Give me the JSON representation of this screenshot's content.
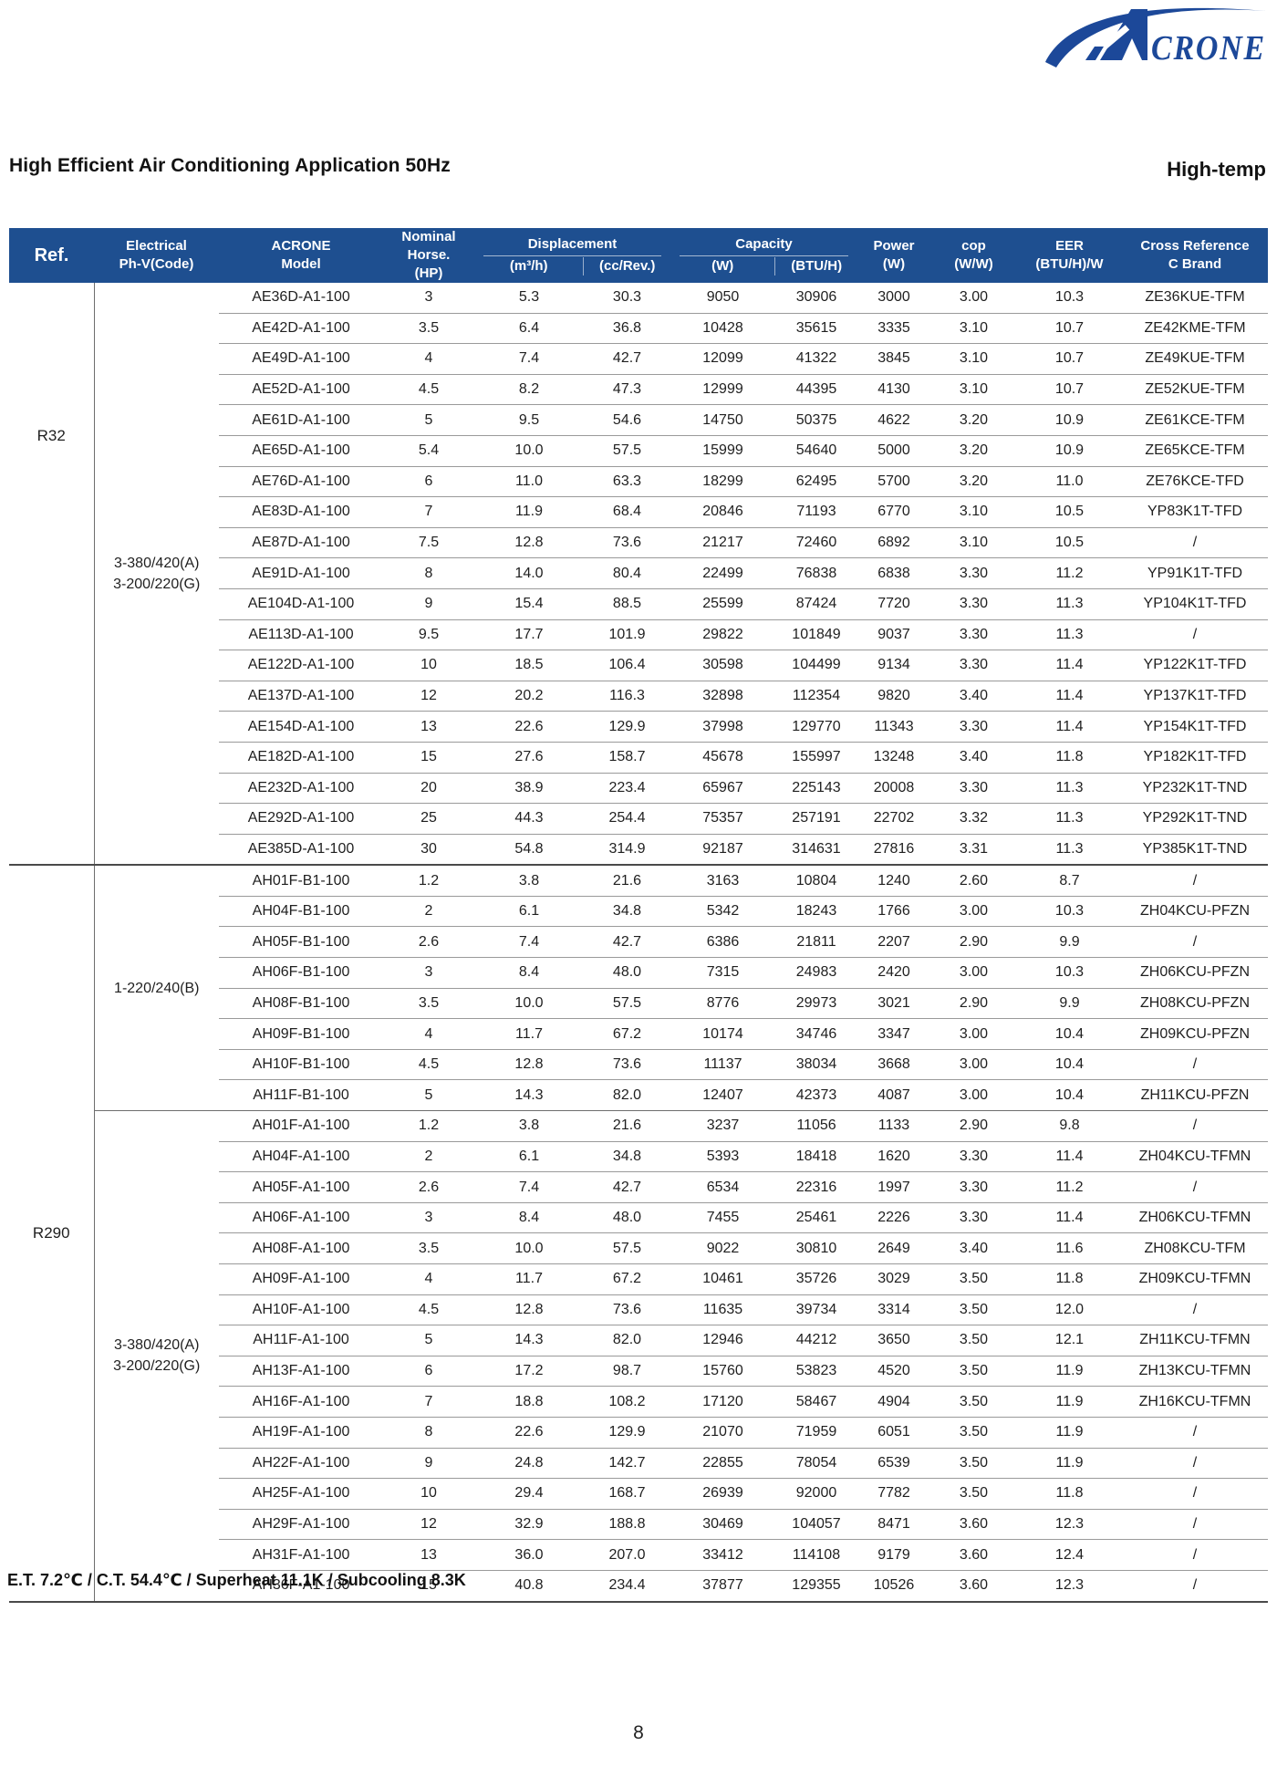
{
  "theme": {
    "header_bg": "#1e4f90",
    "brand_blue": "#1c4899",
    "rule_light": "#9a9a9a",
    "rule_mid": "#6e6e6e",
    "rule_dark": "#4a4a4a"
  },
  "page": {
    "title": "High Efficient Air Conditioning Application 50Hz",
    "corner_label": "High-temp",
    "footnote": "E.T. 7.2℃ / C.T. 54.4℃ / Superheat 11.1K / Subcooling 8.3K",
    "page_number": "8"
  },
  "logo": {
    "brand_rest": "CRONE"
  },
  "table": {
    "header": {
      "ref": "Ref.",
      "electrical_l1": "Electrical",
      "electrical_l2": "Ph-V(Code)",
      "model_l1": "ACRONE",
      "model_l2": "Model",
      "hp_l1": "Nominal Horse.",
      "hp_l2": "(HP)",
      "displacement": "Displacement",
      "disp_m3h": "(m³/h)",
      "disp_cc": "(cc/Rev.)",
      "capacity": "Capacity",
      "cap_w": "(W)",
      "cap_btu": "(BTU/H)",
      "power_l1": "Power",
      "power_l2": "(W)",
      "cop_l1": "cop",
      "cop_l2": "(W/W)",
      "eer_l1": "EER",
      "eer_l2": "(BTU/H)/W",
      "cross_l1": "Cross Reference",
      "cross_l2": "C Brand"
    },
    "sections": [
      {
        "ref": "R32",
        "ref_label_high": true,
        "groups": [
          {
            "electrical": [
              "3-380/420(A)",
              "3-200/220(G)"
            ],
            "rows": [
              [
                "AE36D-A1-100",
                "3",
                "5.3",
                "30.3",
                "9050",
                "30906",
                "3000",
                "3.00",
                "10.3",
                "ZE36KUE-TFM"
              ],
              [
                "AE42D-A1-100",
                "3.5",
                "6.4",
                "36.8",
                "10428",
                "35615",
                "3335",
                "3.10",
                "10.7",
                "ZE42KME-TFM"
              ],
              [
                "AE49D-A1-100",
                "4",
                "7.4",
                "42.7",
                "12099",
                "41322",
                "3845",
                "3.10",
                "10.7",
                "ZE49KUE-TFM"
              ],
              [
                "AE52D-A1-100",
                "4.5",
                "8.2",
                "47.3",
                "12999",
                "44395",
                "4130",
                "3.10",
                "10.7",
                "ZE52KUE-TFM"
              ],
              [
                "AE61D-A1-100",
                "5",
                "9.5",
                "54.6",
                "14750",
                "50375",
                "4622",
                "3.20",
                "10.9",
                "ZE61KCE-TFM"
              ],
              [
                "AE65D-A1-100",
                "5.4",
                "10.0",
                "57.5",
                "15999",
                "54640",
                "5000",
                "3.20",
                "10.9",
                "ZE65KCE-TFM"
              ],
              [
                "AE76D-A1-100",
                "6",
                "11.0",
                "63.3",
                "18299",
                "62495",
                "5700",
                "3.20",
                "11.0",
                "ZE76KCE-TFD"
              ],
              [
                "AE83D-A1-100",
                "7",
                "11.9",
                "68.4",
                "20846",
                "71193",
                "6770",
                "3.10",
                "10.5",
                "YP83K1T-TFD"
              ],
              [
                "AE87D-A1-100",
                "7.5",
                "12.8",
                "73.6",
                "21217",
                "72460",
                "6892",
                "3.10",
                "10.5",
                "/"
              ],
              [
                "AE91D-A1-100",
                "8",
                "14.0",
                "80.4",
                "22499",
                "76838",
                "6838",
                "3.30",
                "11.2",
                "YP91K1T-TFD"
              ],
              [
                "AE104D-A1-100",
                "9",
                "15.4",
                "88.5",
                "25599",
                "87424",
                "7720",
                "3.30",
                "11.3",
                "YP104K1T-TFD"
              ],
              [
                "AE113D-A1-100",
                "9.5",
                "17.7",
                "101.9",
                "29822",
                "101849",
                "9037",
                "3.30",
                "11.3",
                "/"
              ],
              [
                "AE122D-A1-100",
                "10",
                "18.5",
                "106.4",
                "30598",
                "104499",
                "9134",
                "3.30",
                "11.4",
                "YP122K1T-TFD"
              ],
              [
                "AE137D-A1-100",
                "12",
                "20.2",
                "116.3",
                "32898",
                "112354",
                "9820",
                "3.40",
                "11.4",
                "YP137K1T-TFD"
              ],
              [
                "AE154D-A1-100",
                "13",
                "22.6",
                "129.9",
                "37998",
                "129770",
                "11343",
                "3.30",
                "11.4",
                "YP154K1T-TFD"
              ],
              [
                "AE182D-A1-100",
                "15",
                "27.6",
                "158.7",
                "45678",
                "155997",
                "13248",
                "3.40",
                "11.8",
                "YP182K1T-TFD"
              ],
              [
                "AE232D-A1-100",
                "20",
                "38.9",
                "223.4",
                "65967",
                "225143",
                "20008",
                "3.30",
                "11.3",
                "YP232K1T-TND"
              ],
              [
                "AE292D-A1-100",
                "25",
                "44.3",
                "254.4",
                "75357",
                "257191",
                "22702",
                "3.32",
                "11.3",
                "YP292K1T-TND"
              ],
              [
                "AE385D-A1-100",
                "30",
                "54.8",
                "314.9",
                "92187",
                "314631",
                "27816",
                "3.31",
                "11.3",
                "YP385K1T-TND"
              ]
            ]
          }
        ]
      },
      {
        "ref": "R290",
        "ref_label_high": false,
        "groups": [
          {
            "electrical": [
              "1-220/240(B)"
            ],
            "rows": [
              [
                "AH01F-B1-100",
                "1.2",
                "3.8",
                "21.6",
                "3163",
                "10804",
                "1240",
                "2.60",
                "8.7",
                "/"
              ],
              [
                "AH04F-B1-100",
                "2",
                "6.1",
                "34.8",
                "5342",
                "18243",
                "1766",
                "3.00",
                "10.3",
                "ZH04KCU-PFZN"
              ],
              [
                "AH05F-B1-100",
                "2.6",
                "7.4",
                "42.7",
                "6386",
                "21811",
                "2207",
                "2.90",
                "9.9",
                "/"
              ],
              [
                "AH06F-B1-100",
                "3",
                "8.4",
                "48.0",
                "7315",
                "24983",
                "2420",
                "3.00",
                "10.3",
                "ZH06KCU-PFZN"
              ],
              [
                "AH08F-B1-100",
                "3.5",
                "10.0",
                "57.5",
                "8776",
                "29973",
                "3021",
                "2.90",
                "9.9",
                "ZH08KCU-PFZN"
              ],
              [
                "AH09F-B1-100",
                "4",
                "11.7",
                "67.2",
                "10174",
                "34746",
                "3347",
                "3.00",
                "10.4",
                "ZH09KCU-PFZN"
              ],
              [
                "AH10F-B1-100",
                "4.5",
                "12.8",
                "73.6",
                "11137",
                "38034",
                "3668",
                "3.00",
                "10.4",
                "/"
              ],
              [
                "AH11F-B1-100",
                "5",
                "14.3",
                "82.0",
                "12407",
                "42373",
                "4087",
                "3.00",
                "10.4",
                "ZH11KCU-PFZN"
              ]
            ]
          },
          {
            "electrical": [
              "3-380/420(A)",
              "3-200/220(G)"
            ],
            "rows": [
              [
                "AH01F-A1-100",
                "1.2",
                "3.8",
                "21.6",
                "3237",
                "11056",
                "1133",
                "2.90",
                "9.8",
                "/"
              ],
              [
                "AH04F-A1-100",
                "2",
                "6.1",
                "34.8",
                "5393",
                "18418",
                "1620",
                "3.30",
                "11.4",
                "ZH04KCU-TFMN"
              ],
              [
                "AH05F-A1-100",
                "2.6",
                "7.4",
                "42.7",
                "6534",
                "22316",
                "1997",
                "3.30",
                "11.2",
                "/"
              ],
              [
                "AH06F-A1-100",
                "3",
                "8.4",
                "48.0",
                "7455",
                "25461",
                "2226",
                "3.30",
                "11.4",
                "ZH06KCU-TFMN"
              ],
              [
                "AH08F-A1-100",
                "3.5",
                "10.0",
                "57.5",
                "9022",
                "30810",
                "2649",
                "3.40",
                "11.6",
                "ZH08KCU-TFM"
              ],
              [
                "AH09F-A1-100",
                "4",
                "11.7",
                "67.2",
                "10461",
                "35726",
                "3029",
                "3.50",
                "11.8",
                "ZH09KCU-TFMN"
              ],
              [
                "AH10F-A1-100",
                "4.5",
                "12.8",
                "73.6",
                "11635",
                "39734",
                "3314",
                "3.50",
                "12.0",
                "/"
              ],
              [
                "AH11F-A1-100",
                "5",
                "14.3",
                "82.0",
                "12946",
                "44212",
                "3650",
                "3.50",
                "12.1",
                "ZH11KCU-TFMN"
              ],
              [
                "AH13F-A1-100",
                "6",
                "17.2",
                "98.7",
                "15760",
                "53823",
                "4520",
                "3.50",
                "11.9",
                "ZH13KCU-TFMN"
              ],
              [
                "AH16F-A1-100",
                "7",
                "18.8",
                "108.2",
                "17120",
                "58467",
                "4904",
                "3.50",
                "11.9",
                "ZH16KCU-TFMN"
              ],
              [
                "AH19F-A1-100",
                "8",
                "22.6",
                "129.9",
                "21070",
                "71959",
                "6051",
                "3.50",
                "11.9",
                "/"
              ],
              [
                "AH22F-A1-100",
                "9",
                "24.8",
                "142.7",
                "22855",
                "78054",
                "6539",
                "3.50",
                "11.9",
                "/"
              ],
              [
                "AH25F-A1-100",
                "10",
                "29.4",
                "168.7",
                "26939",
                "92000",
                "7782",
                "3.50",
                "11.8",
                "/"
              ],
              [
                "AH29F-A1-100",
                "12",
                "32.9",
                "188.8",
                "30469",
                "104057",
                "8471",
                "3.60",
                "12.3",
                "/"
              ],
              [
                "AH31F-A1-100",
                "13",
                "36.0",
                "207.0",
                "33412",
                "114108",
                "9179",
                "3.60",
                "12.4",
                "/"
              ],
              [
                "AH36F-A1-100",
                "15",
                "40.8",
                "234.4",
                "37877",
                "129355",
                "10526",
                "3.60",
                "12.3",
                "/"
              ]
            ]
          }
        ]
      }
    ]
  }
}
